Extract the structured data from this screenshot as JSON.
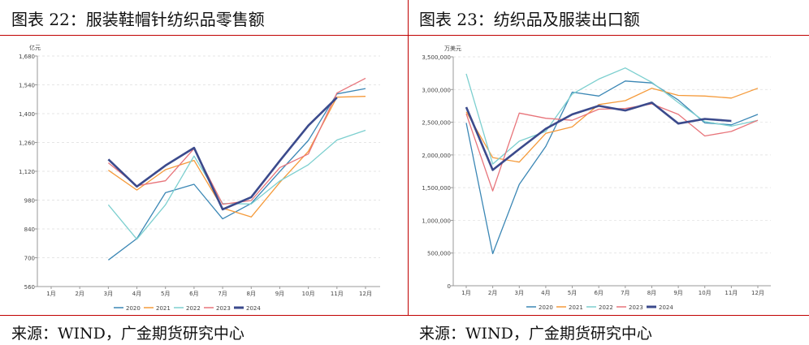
{
  "left": {
    "title": "图表 22：服装鞋帽针纺织品零售额",
    "source": "来源：WIND，广金期货研究中心"
  },
  "right": {
    "title": "图表 23：纺织品及服装出口额",
    "source": "来源：WIND，广金期货研究中心"
  },
  "chart_data": [
    {
      "type": "line",
      "ylabel": "亿元",
      "ylim": [
        560,
        1680
      ],
      "yticks": [
        560,
        700,
        840,
        980,
        1120,
        1260,
        1400,
        1540,
        1680
      ],
      "ytick_labels": [
        "560",
        "700",
        "840",
        "980",
        "1,120",
        "1,260",
        "1,400",
        "1,540",
        "1,680"
      ],
      "grid": true,
      "legend": "bottom",
      "categories": [
        "1月",
        "2月",
        "3月",
        "4月",
        "5月",
        "6月",
        "7月",
        "8月",
        "9月",
        "10月",
        "11月",
        "12月"
      ],
      "series": [
        {
          "name": "2020",
          "color": "#3b87b5",
          "values": [
            null,
            null,
            689,
            793,
            1016,
            1057,
            889,
            964,
            1119,
            1270,
            1496,
            1522
          ]
        },
        {
          "name": "2021",
          "color": "#f59a3a",
          "values": [
            null,
            null,
            1125,
            1029,
            1128,
            1173,
            941,
            898,
            1066,
            1217,
            1480,
            1484
          ]
        },
        {
          "name": "2022",
          "color": "#7ccfcf",
          "values": [
            null,
            null,
            957,
            790,
            957,
            1194,
            964,
            961,
            1073,
            1152,
            1272,
            1319
          ]
        },
        {
          "name": "2023",
          "color": "#e8747a",
          "values": [
            null,
            null,
            1161,
            1050,
            1074,
            1230,
            960,
            978,
            1138,
            1204,
            1500,
            1572
          ]
        },
        {
          "name": "2024",
          "color": "#3b4a8c",
          "values": [
            null,
            null,
            1178,
            1046,
            1148,
            1234,
            935,
            994,
            1171,
            1342,
            1478,
            null
          ]
        }
      ]
    },
    {
      "type": "line",
      "ylabel": "万美元",
      "ylim": [
        0,
        3500000
      ],
      "yticks": [
        0,
        500000,
        1000000,
        1500000,
        2000000,
        2500000,
        3000000,
        3500000
      ],
      "ytick_labels": [
        "0",
        "500,000",
        "1,000,000",
        "1,500,000",
        "2,000,000",
        "2,500,000",
        "3,000,000",
        "3,500,000"
      ],
      "grid": true,
      "legend": "bottom",
      "categories": [
        "1月",
        "2月",
        "3月",
        "4月",
        "5月",
        "6月",
        "7月",
        "8月",
        "9月",
        "10月",
        "11月",
        "12月"
      ],
      "series": [
        {
          "name": "2020",
          "color": "#3b87b5",
          "values": [
            2490000,
            490000,
            1550000,
            2130000,
            2960000,
            2900000,
            3130000,
            3100000,
            2840000,
            2490000,
            2460000,
            2620000
          ]
        },
        {
          "name": "2021",
          "color": "#f59a3a",
          "values": [
            2660000,
            1960000,
            1890000,
            2330000,
            2430000,
            2770000,
            2830000,
            3020000,
            2910000,
            2900000,
            2870000,
            3020000
          ]
        },
        {
          "name": "2022",
          "color": "#7ccfcf",
          "values": [
            3240000,
            1860000,
            2210000,
            2360000,
            2930000,
            3160000,
            3330000,
            3110000,
            2800000,
            2510000,
            2440000,
            2530000
          ]
        },
        {
          "name": "2023",
          "color": "#e8747a",
          "values": [
            2630000,
            1450000,
            2640000,
            2560000,
            2530000,
            2700000,
            2710000,
            2780000,
            2620000,
            2290000,
            2360000,
            2530000
          ]
        },
        {
          "name": "2024",
          "color": "#3b4a8c",
          "values": [
            2730000,
            1770000,
            2090000,
            2400000,
            2620000,
            2750000,
            2680000,
            2800000,
            2480000,
            2550000,
            2520000,
            null
          ]
        }
      ]
    }
  ]
}
